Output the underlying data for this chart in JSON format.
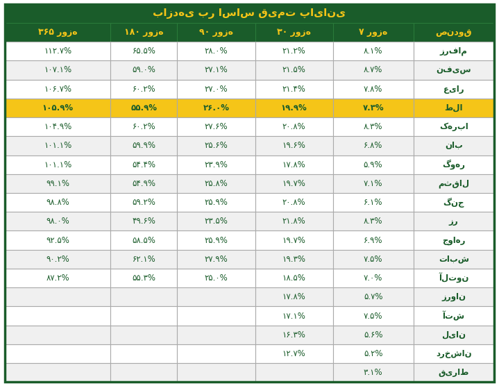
{
  "title": "بازدهی بر اساس قیمت پایانی",
  "columns": [
    "صندوق",
    "۷ روزه",
    "۳۰ روزه",
    "۹۰ روزه",
    "۱۸۰ روزه",
    "۳۶۵ روزه"
  ],
  "rows": [
    [
      "زرفام",
      "۸.۱%",
      "۲۱.۲%",
      "۲۸.۰%",
      "۶۵.۵%",
      "۱۱۲.۷%"
    ],
    [
      "نفیس",
      "۸.۷%",
      "۲۱.۵%",
      "۲۷.۱%",
      "۵۹.۰%",
      "۱۰۷.۱%"
    ],
    [
      "عیار",
      "۷.۸%",
      "۲۱.۴%",
      "۲۷.۰%",
      "۶۰.۲%",
      "۱۰۶.۷%"
    ],
    [
      "طلا",
      "۷.۳%",
      "۱۹.۹%",
      "۲۶.۰%",
      "۵۵.۹%",
      "۱۰۵.۹%"
    ],
    [
      "کهربا",
      "۸.۳%",
      "۲۰.۸%",
      "۲۷.۶%",
      "۶۰.۲%",
      "۱۰۴.۹%"
    ],
    [
      "ناب",
      "۶.۸%",
      "۱۹.۶%",
      "۲۵.۶%",
      "۵۹.۹%",
      "۱۰۱.۱%"
    ],
    [
      "گوهر",
      "۵.۹%",
      "۱۷.۸%",
      "۲۳.۹%",
      "۵۴.۴%",
      "۱۰۱.۱%"
    ],
    [
      "مثقال",
      "۷.۱%",
      "۱۹.۷%",
      "۲۵.۸%",
      "۵۴.۹%",
      "۹۹.۱%"
    ],
    [
      "گنج",
      "۶.۱%",
      "۲۰.۸%",
      "۲۵.۹%",
      "۵۹.۲%",
      "۹۸.۸%"
    ],
    [
      "زر",
      "۸.۳%",
      "۲۱.۸%",
      "۲۳.۵%",
      "۴۹.۶%",
      "۹۸.۰%"
    ],
    [
      "جواهر",
      "۶.۹%",
      "۱۹.۷%",
      "۲۵.۹%",
      "۵۸.۵%",
      "۹۲.۵%"
    ],
    [
      "تابش",
      "۷.۵%",
      "۱۹.۳%",
      "۲۷.۹%",
      "۶۲.۱%",
      "۹۰.۲%"
    ],
    [
      "آلتون",
      "۷.۰%",
      "۱۸.۵%",
      "۲۵.۰%",
      "۵۵.۳%",
      "۸۷.۲%"
    ],
    [
      "زروان",
      "۵.۷%",
      "۱۷.۸%",
      "",
      "",
      ""
    ],
    [
      "آتش",
      "۷.۵%",
      "۱۷.۱%",
      "",
      "",
      ""
    ],
    [
      "لیان",
      "۵.۶%",
      "۱۶.۳%",
      "",
      "",
      ""
    ],
    [
      "درخشان",
      "۵.۲%",
      "۱۲.۷%",
      "",
      "",
      ""
    ],
    [
      "قیراط",
      "۳.۱%",
      "",
      "",
      "",
      ""
    ]
  ],
  "highlighted_row": 3,
  "header_bg": "#1a5c2a",
  "header_text": "#f5c518",
  "col_header_bg": "#1a5c2a",
  "col_header_text": "#f5c518",
  "highlight_bg": "#f5c518",
  "highlight_text": "#1a5c2a",
  "row_bg_odd": "#ffffff",
  "row_bg_even": "#f0f0f0",
  "cell_text": "#1a5c2a",
  "border_color": "#cccccc",
  "outer_border": "#1a5c2a"
}
